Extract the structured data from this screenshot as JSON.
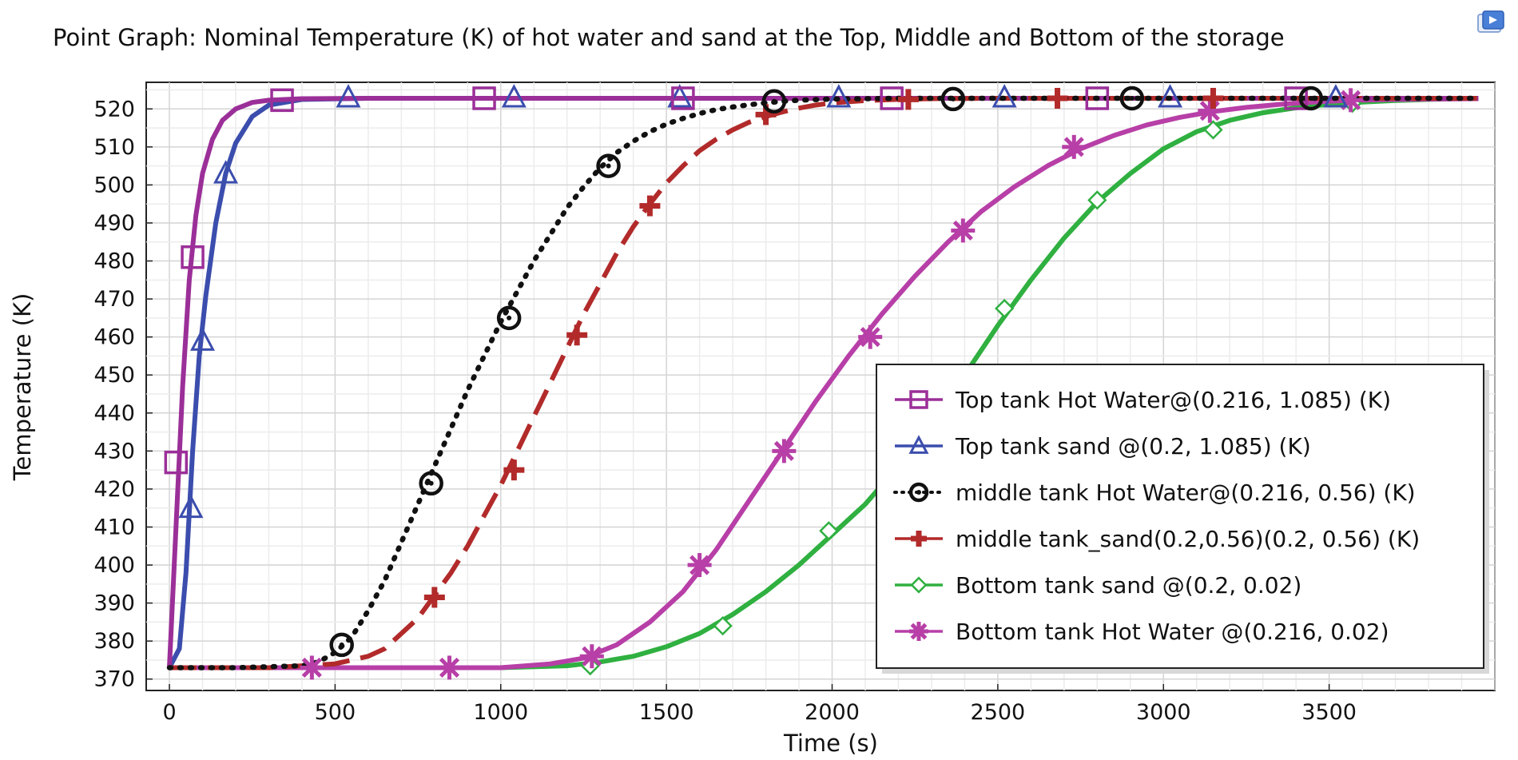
{
  "chart_data": {
    "type": "line",
    "title": "Point Graph: Nominal Temperature (K) of hot water and sand  at the  Top, Middle  and Bottom of the storage",
    "xlabel": "Time (s)",
    "ylabel": "Temperature (K)",
    "xlim": [
      -70,
      4000
    ],
    "ylim": [
      367,
      527
    ],
    "xticks": [
      0,
      500,
      1000,
      1500,
      2000,
      2500,
      3000,
      3500
    ],
    "yticks": [
      370,
      380,
      390,
      400,
      410,
      420,
      430,
      440,
      450,
      460,
      470,
      480,
      490,
      500,
      510,
      520
    ],
    "grid": true,
    "legend_position": "bottom-right",
    "series": [
      {
        "name": "Top tank Hot Water@(0.216, 1.085) (K)",
        "color": "#9b2f98",
        "marker": "square",
        "dash": "solid",
        "x": [
          0,
          20,
          40,
          60,
          80,
          100,
          130,
          160,
          200,
          250,
          300,
          400,
          600,
          1000,
          1500,
          2000,
          2500,
          3000,
          3500,
          3950
        ],
        "y": [
          373,
          410,
          447,
          475,
          492,
          503,
          512,
          517,
          520,
          521.7,
          522.3,
          522.7,
          522.8,
          522.8,
          522.8,
          522.8,
          522.8,
          522.8,
          522.8,
          522.8
        ],
        "markers_x": [
          20,
          70,
          340,
          950,
          1550,
          2180,
          2800,
          3400
        ],
        "markers_y": [
          427,
          481,
          522.3,
          522.8,
          522.8,
          522.8,
          522.8,
          522.8
        ]
      },
      {
        "name": "Top tank sand @(0.2, 1.085) (K)",
        "color": "#3b4dad",
        "marker": "triangle",
        "dash": "solid",
        "x": [
          0,
          30,
          50,
          70,
          90,
          110,
          140,
          170,
          200,
          250,
          300,
          400,
          600,
          1000,
          1500,
          2000,
          2500,
          3000,
          3500,
          3950
        ],
        "y": [
          373,
          378,
          398,
          430,
          455,
          471,
          490,
          503,
          511,
          518,
          521,
          522.5,
          522.8,
          522.8,
          522.8,
          522.8,
          522.8,
          522.8,
          522.8,
          522.8
        ],
        "markers_x": [
          65,
          100,
          170,
          540,
          1040,
          1540,
          2020,
          2520,
          3020,
          3520
        ],
        "markers_y": [
          415,
          459,
          503,
          523,
          523,
          523,
          523,
          523,
          523,
          523
        ]
      },
      {
        "name": "middle tank Hot Water@(0.216, 0.56) (K)",
        "color": "#111111",
        "marker": "circle",
        "dash": "dotted",
        "x": [
          0,
          200,
          400,
          450,
          500,
          550,
          600,
          650,
          700,
          750,
          800,
          850,
          900,
          950,
          1000,
          1050,
          1100,
          1150,
          1200,
          1250,
          1300,
          1350,
          1400,
          1450,
          1500,
          1550,
          1600,
          1650,
          1700,
          1750,
          1800,
          1850,
          1900,
          2000,
          2100,
          2200,
          2500,
          3000,
          3500,
          3950
        ],
        "y": [
          373,
          373,
          373.5,
          374.5,
          377,
          381,
          388,
          396,
          406,
          416,
          426,
          436,
          446,
          455,
          464,
          472,
          480,
          487,
          494,
          499.5,
          504.5,
          508.5,
          511.5,
          514,
          516,
          517.5,
          518.8,
          519.8,
          520.5,
          521.1,
          521.6,
          522,
          522.3,
          522.6,
          522.7,
          522.8,
          522.8,
          522.8,
          522.8,
          522.8
        ],
        "markers_x": [
          520,
          790,
          1025,
          1325,
          1825,
          2365,
          2905,
          3445
        ],
        "markers_y": [
          379,
          421.5,
          465,
          505,
          522,
          522.6,
          522.8,
          522.8
        ]
      },
      {
        "name": "middle tank_sand(0.2,0.56)(0.2, 0.56) (K)",
        "color": "#b22a2a",
        "marker": "plus",
        "dash": "dashed",
        "x": [
          0,
          300,
          500,
          600,
          650,
          700,
          750,
          800,
          850,
          900,
          950,
          1000,
          1050,
          1100,
          1150,
          1200,
          1250,
          1300,
          1350,
          1400,
          1450,
          1500,
          1550,
          1600,
          1650,
          1700,
          1750,
          1800,
          1850,
          1900,
          1950,
          2000,
          2100,
          2200,
          2300,
          2500,
          3000,
          3500,
          3950
        ],
        "y": [
          373,
          373,
          374,
          376,
          378,
          382,
          386,
          392,
          398,
          405,
          413,
          421,
          430,
          439,
          448,
          457,
          466,
          474,
          482,
          489,
          495,
          500.5,
          505,
          509,
          512,
          514.5,
          516.5,
          518,
          519.2,
          520.2,
          521,
          521.6,
          522.2,
          522.5,
          522.7,
          522.8,
          522.8,
          522.8,
          522.8
        ],
        "markers_x": [
          800,
          1040,
          1230,
          1450,
          1800,
          2230,
          2680,
          3150
        ],
        "markers_y": [
          391.5,
          425,
          460.5,
          494.5,
          518.5,
          522.5,
          522.8,
          522.8
        ]
      },
      {
        "name": "Bottom tank sand    @(0.2, 0.02)",
        "color": "#2fb040",
        "marker": "diamond",
        "dash": "solid",
        "x": [
          0,
          1000,
          1200,
          1300,
          1400,
          1500,
          1600,
          1700,
          1800,
          1900,
          2000,
          2100,
          2200,
          2300,
          2400,
          2500,
          2600,
          2700,
          2800,
          2900,
          3000,
          3100,
          3200,
          3300,
          3400,
          3500,
          3600,
          3700,
          3800,
          3950
        ],
        "y": [
          373,
          373,
          373.5,
          374.5,
          376,
          378.5,
          382,
          387,
          393,
          400,
          408,
          416,
          426,
          437,
          450,
          463,
          475,
          486,
          495.5,
          503,
          509.5,
          514,
          517,
          519,
          520.3,
          521.2,
          521.8,
          522.2,
          522.5,
          522.8
        ],
        "markers_x": [
          1270,
          1670,
          1990,
          2520,
          2800,
          3150,
          3570
        ],
        "markers_y": [
          373.5,
          384,
          409,
          467.5,
          496,
          514.5,
          521.5
        ]
      },
      {
        "name": "Bottom tank Hot Water @(0.216, 0.02)",
        "color": "#b73fa7",
        "marker": "star",
        "dash": "solid",
        "x": [
          0,
          1000,
          1150,
          1250,
          1350,
          1450,
          1550,
          1650,
          1750,
          1850,
          1950,
          2050,
          2150,
          2250,
          2350,
          2450,
          2550,
          2650,
          2750,
          2850,
          2950,
          3050,
          3150,
          3250,
          3350,
          3450,
          3550,
          3700,
          3950
        ],
        "y": [
          373,
          373,
          374,
          375.5,
          379,
          385,
          393,
          404,
          417,
          430,
          443,
          455,
          466,
          476,
          485,
          493,
          499.5,
          505,
          509.5,
          513,
          515.8,
          517.8,
          519.3,
          520.4,
          521.2,
          521.8,
          522.2,
          522.5,
          522.7
        ],
        "markers_x": [
          430,
          845,
          1275,
          1600,
          1855,
          2115,
          2395,
          2730,
          3140,
          3565
        ],
        "markers_y": [
          373,
          373,
          376,
          400,
          430,
          460,
          488,
          510,
          519.5,
          522.3
        ]
      }
    ]
  }
}
